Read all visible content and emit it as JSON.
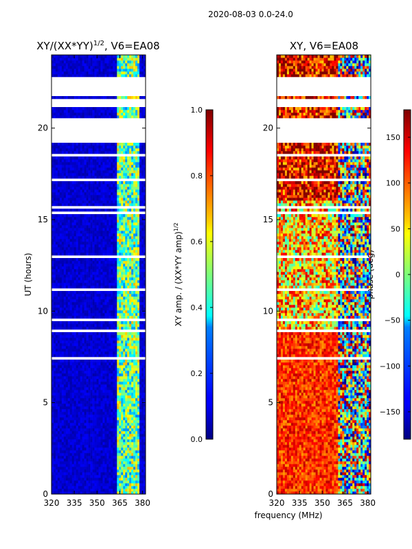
{
  "figure": {
    "suptitle": "2020-08-03 0.0-24.0",
    "shared_xlabel": "frequency (MHz)"
  },
  "chart_data": [
    {
      "type": "heatmap",
      "title_prefix": "XY/(XX*YY)",
      "title_exponent": "1/2",
      "title_suffix": ", V6=EA08",
      "xlabel": "frequency (MHz)",
      "ylabel": "UT (hours)",
      "xlim": [
        320,
        382
      ],
      "ylim": [
        0,
        24
      ],
      "xticks": [
        "320",
        "335",
        "350",
        "365",
        "380"
      ],
      "xtick_values": [
        320,
        335,
        350,
        365,
        380
      ],
      "yticks": [
        "0",
        "5",
        "10",
        "15",
        "20"
      ],
      "ytick_values": [
        0,
        5,
        10,
        15,
        20
      ],
      "colorbar": {
        "label_prefix": "XY amp. / (XX*YY amp)",
        "label_exponent": "1/2",
        "range": [
          0.0,
          1.0
        ],
        "ticks": [
          "0.0",
          "0.2",
          "0.4",
          "0.6",
          "0.8",
          "1.0"
        ],
        "tick_values": [
          0.0,
          0.2,
          0.4,
          0.6,
          0.8,
          1.0
        ],
        "colormap": "jet"
      },
      "flagged_ut_ranges": [
        [
          19.2,
          20.6
        ],
        [
          21.1,
          21.6
        ],
        [
          21.8,
          22.8
        ]
      ],
      "bright_band_mhz": [
        363,
        378
      ]
    },
    {
      "type": "heatmap",
      "title": "XY, V6=EA08",
      "xlabel": "frequency (MHz)",
      "ylabel": "",
      "xlim": [
        320,
        382
      ],
      "ylim": [
        0,
        24
      ],
      "xticks": [
        "320",
        "335",
        "350",
        "365",
        "380"
      ],
      "xtick_values": [
        320,
        335,
        350,
        365,
        380
      ],
      "yticks": [
        "0",
        "5",
        "10",
        "15",
        "20"
      ],
      "ytick_values": [
        0,
        5,
        10,
        15,
        20
      ],
      "colorbar": {
        "label": "phase (deg)",
        "range": [
          -180,
          180
        ],
        "ticks": [
          "−150",
          "−100",
          "−50",
          "0",
          "50",
          "100",
          "150"
        ],
        "tick_values": [
          -150,
          -100,
          -50,
          0,
          50,
          100,
          150
        ],
        "colormap": "jet"
      },
      "flagged_ut_ranges": [
        [
          19.2,
          20.6
        ],
        [
          21.1,
          21.6
        ],
        [
          21.8,
          22.8
        ]
      ]
    }
  ]
}
